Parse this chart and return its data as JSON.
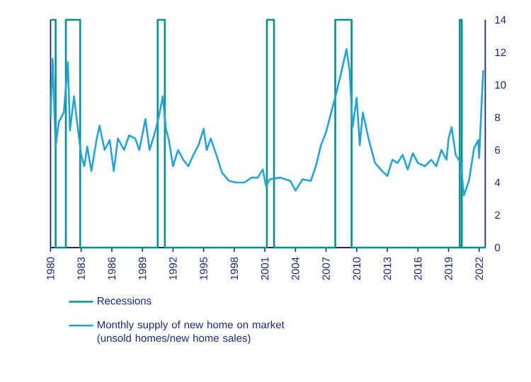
{
  "chart_data": {
    "type": "line",
    "xlim": [
      1980,
      2022.6
    ],
    "xticks": [
      1980,
      1983,
      1986,
      1989,
      1992,
      1995,
      1998,
      2001,
      2004,
      2007,
      2010,
      2013,
      2016,
      2019,
      2022
    ],
    "y2lim": [
      0,
      14
    ],
    "y2ticks": [
      0,
      2,
      4,
      6,
      8,
      10,
      12,
      14
    ],
    "legend": "bottom",
    "marker": "none",
    "grid": false,
    "series": [
      {
        "name": "Recessions",
        "type": "step",
        "axis": "y2",
        "color": "#00918a",
        "x": [
          1980,
          1980.5,
          1981.5,
          1982.9,
          1990.5,
          1991.2,
          2001.2,
          2001.9,
          2007.9,
          2009.5,
          2020.1,
          2020.3,
          2022.6
        ],
        "values": [
          14,
          0,
          14,
          0,
          14,
          0,
          14,
          0,
          14,
          0,
          14,
          0,
          0
        ]
      },
      {
        "name": "Monthly supply of new home on market (unsold homes/new home sales)",
        "axis": "y2",
        "color": "#28a2d2",
        "x": [
          1980.0,
          1980.2,
          1980.5,
          1980.8,
          1981.3,
          1981.7,
          1981.9,
          1982.3,
          1982.6,
          1983.0,
          1983.3,
          1983.6,
          1984.0,
          1984.5,
          1984.8,
          1985.3,
          1985.8,
          1986.2,
          1986.6,
          1987.2,
          1987.7,
          1988.3,
          1988.7,
          1989.3,
          1989.7,
          1990.2,
          1990.6,
          1991.0,
          1991.3,
          1991.6,
          1992.0,
          1992.5,
          1993.0,
          1993.5,
          1994.0,
          1994.5,
          1995.0,
          1995.3,
          1995.7,
          1996.3,
          1996.8,
          1997.5,
          1998.2,
          1999.0,
          1999.7,
          2000.3,
          2000.8,
          2001.1,
          2001.5,
          2002.5,
          2003.5,
          2004.0,
          2004.7,
          2005.5,
          2006.0,
          2006.5,
          2007.0,
          2007.5,
          2008.0,
          2008.5,
          2009.0,
          2009.3,
          2009.6,
          2010.0,
          2010.3,
          2010.6,
          2011.2,
          2011.8,
          2012.5,
          2013.0,
          2013.5,
          2014.0,
          2014.5,
          2015.0,
          2015.5,
          2016.0,
          2016.7,
          2017.3,
          2017.8,
          2018.3,
          2018.8,
          2019.0,
          2019.3,
          2019.7,
          2020.2,
          2020.5,
          2021.0,
          2021.5,
          2021.9,
          2022.0,
          2022.2,
          2022.4
        ],
        "values": [
          7.9,
          11.6,
          6.2,
          7.7,
          8.3,
          11.4,
          7.2,
          9.3,
          7.7,
          5.7,
          5.0,
          6.2,
          4.7,
          6.6,
          7.5,
          6.0,
          6.6,
          4.7,
          6.7,
          6.0,
          6.9,
          6.7,
          6.0,
          7.9,
          6.0,
          7.0,
          8.0,
          9.3,
          7.3,
          6.6,
          5.0,
          6.0,
          5.4,
          5.0,
          5.7,
          6.3,
          7.3,
          6.0,
          6.7,
          5.6,
          4.6,
          4.1,
          4.0,
          4.0,
          4.3,
          4.3,
          4.8,
          3.8,
          4.2,
          4.3,
          4.1,
          3.5,
          4.2,
          4.1,
          5.0,
          6.3,
          7.1,
          8.3,
          9.5,
          10.8,
          12.2,
          10.9,
          7.4,
          9.2,
          6.3,
          8.3,
          6.6,
          5.2,
          4.7,
          4.4,
          5.4,
          5.2,
          5.7,
          4.8,
          5.8,
          5.2,
          5.0,
          5.4,
          5.0,
          6.0,
          5.4,
          6.7,
          7.4,
          5.7,
          5.2,
          3.2,
          4.1,
          6.1,
          6.6,
          5.5,
          8.3,
          10.9
        ]
      }
    ]
  }
}
